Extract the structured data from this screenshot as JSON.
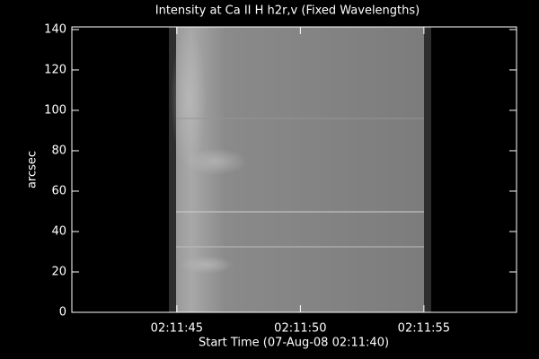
{
  "chart_data": {
    "type": "image",
    "title": "Intensity at Ca II H h2r,v (Fixed Wavelengths)",
    "x_label": "Start Time (07-Aug-08 02:11:40)",
    "y_label": "arcsec",
    "xlim": [
      "02:11:40.75",
      "02:11:58.75"
    ],
    "xticks": [
      "02:11:45",
      "02:11:50",
      "02:11:55"
    ],
    "ylim": [
      0,
      141.3
    ],
    "yticks": [
      0,
      20,
      40,
      60,
      80,
      100,
      120,
      140
    ]
  }
}
